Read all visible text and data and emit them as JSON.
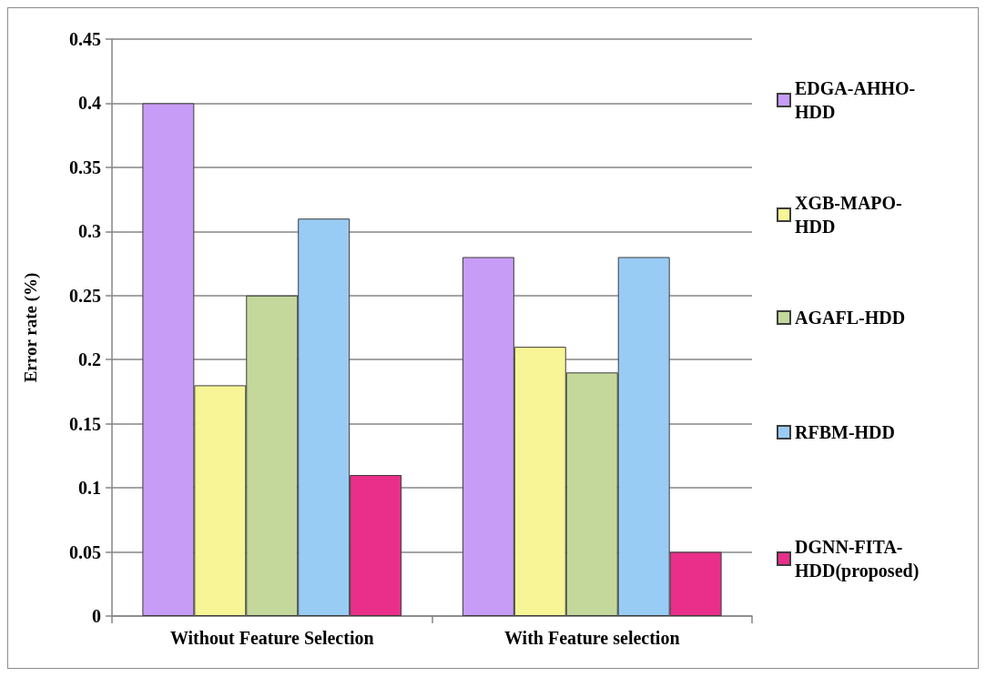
{
  "chart_data": {
    "type": "bar",
    "ylabel": "Error rate (%)",
    "categories": [
      "Without Feature Selection",
      "With Feature selection"
    ],
    "series": [
      {
        "name": "EDGA-AHHO-HDD",
        "color": "#c79cf6",
        "values": [
          0.4,
          0.28
        ]
      },
      {
        "name": "XGB-MAPO-HDD",
        "color": "#f8f596",
        "values": [
          0.18,
          0.21
        ]
      },
      {
        "name": "AGAFL-HDD",
        "color": "#c4d89c",
        "values": [
          0.25,
          0.19
        ]
      },
      {
        "name": "RFBM-HDD",
        "color": "#99ccf5",
        "values": [
          0.31,
          0.28
        ]
      },
      {
        "name": "DGNN-FITA-HDD(proposed)",
        "color": "#ea2f8a",
        "values": [
          0.11,
          0.05
        ]
      }
    ],
    "ylim": [
      0,
      0.45
    ],
    "yticks": [
      0,
      0.05,
      0.1,
      0.15,
      0.2,
      0.25,
      0.3,
      0.35,
      0.4,
      0.45
    ],
    "grid": "y",
    "legend": "right"
  }
}
